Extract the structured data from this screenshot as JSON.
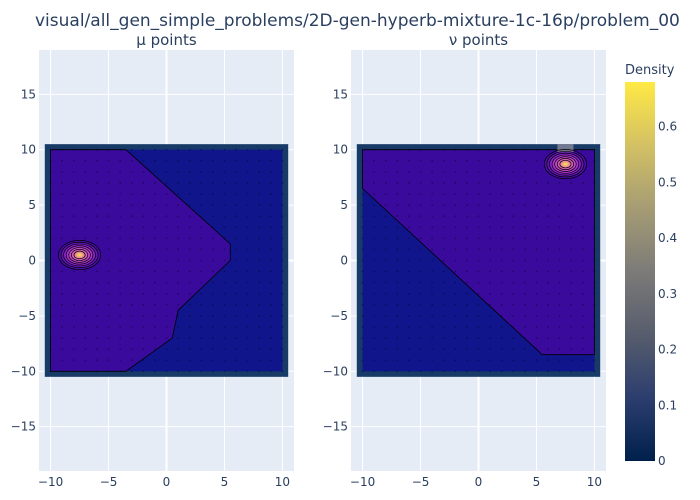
{
  "title": "visual/all_gen_simple_problems/2D-gen-hyperb-mixture-1c-16p/problem_00",
  "chart_data": [
    {
      "type": "heatmap",
      "subtitle": "μ points",
      "xlim": [
        -11,
        11
      ],
      "ylim": [
        -19,
        19
      ],
      "xticks": [
        -10,
        -5,
        0,
        5,
        10
      ],
      "yticks": [
        -15,
        -10,
        -5,
        0,
        5,
        10,
        15
      ],
      "x_tick_labels": [
        "−10",
        "−5",
        "0",
        "5",
        "10"
      ],
      "y_tick_labels": [
        "−15",
        "−10",
        "−5",
        "0",
        "5",
        "10",
        "15"
      ],
      "support": [
        -10,
        10
      ],
      "peak": {
        "x": -7.5,
        "y": 0.5,
        "density": 0.68
      },
      "region_boundary": [
        [
          -3.5,
          10
        ],
        [
          5.5,
          1.5
        ],
        [
          5.5,
          0
        ],
        [
          1,
          -4.5
        ],
        [
          0.5,
          -7
        ],
        [
          -3.5,
          -10
        ]
      ],
      "regions": [
        {
          "name": "left",
          "density": 0.05
        },
        {
          "name": "right",
          "density": 0.02
        }
      ],
      "grid": true
    },
    {
      "type": "heatmap",
      "subtitle": "ν points",
      "xlim": [
        -11,
        11
      ],
      "ylim": [
        -19,
        19
      ],
      "xticks": [
        -10,
        -5,
        0,
        5,
        10
      ],
      "yticks": [
        -15,
        -10,
        -5,
        0,
        5,
        10,
        15
      ],
      "x_tick_labels": [
        "−10",
        "−5",
        "0",
        "5",
        "10"
      ],
      "y_tick_labels": [
        "−15",
        "−10",
        "−5",
        "0",
        "5",
        "10",
        "15"
      ],
      "support": [
        -10,
        10
      ],
      "peak": {
        "x": 7.5,
        "y": 8.7,
        "density": 0.68
      },
      "region_boundary": [
        [
          -10,
          8
        ],
        [
          -10,
          6.5
        ],
        [
          5.5,
          -8.5
        ],
        [
          10,
          -8.5
        ]
      ],
      "regions": [
        {
          "name": "upper",
          "density": 0.05
        },
        {
          "name": "lower",
          "density": 0.02
        }
      ],
      "grid": true
    }
  ],
  "colorbar": {
    "title": "Density",
    "ticks": [
      0,
      0.1,
      0.2,
      0.3,
      0.4,
      0.5,
      0.6
    ],
    "range": [
      0,
      0.68
    ],
    "colorscale": [
      "#00204c",
      "#2c3e6e",
      "#575d6d",
      "#7c7b78",
      "#a59c74",
      "#d3c164",
      "#ffe945"
    ]
  },
  "colors": {
    "background": "#e5ecf6",
    "gridline": "#ffffff",
    "frame": "#173a66",
    "dark_region": "#10158c",
    "light_region": "#3a0a9c",
    "contour": "#000000"
  }
}
